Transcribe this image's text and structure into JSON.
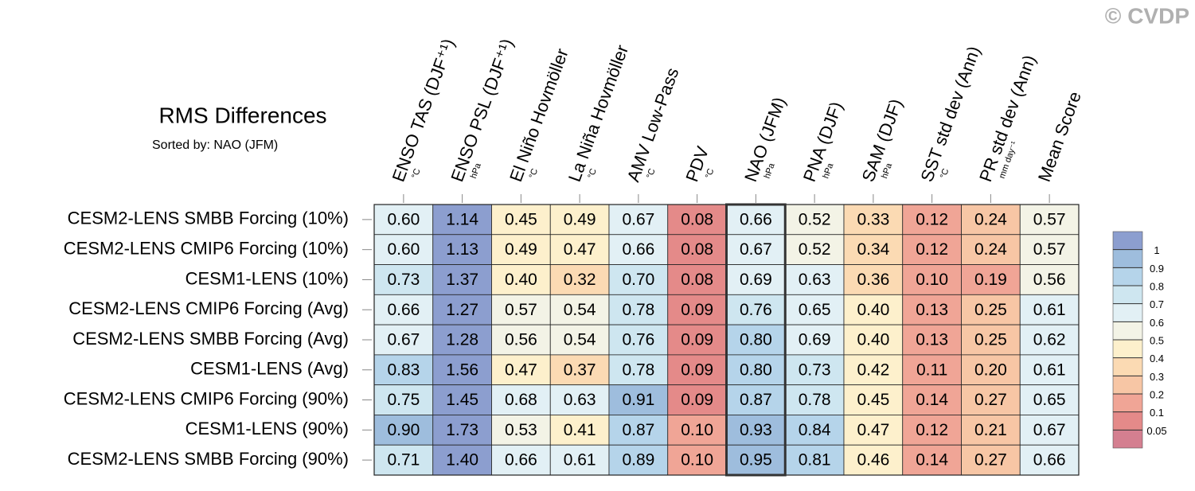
{
  "chart_data": {
    "type": "heatmap",
    "title": "RMS Differences",
    "subtitle": "Sorted by: NAO (JFM)",
    "credit": "© CVDP",
    "columns": [
      {
        "label": "ENSO TAS (DJF⁺¹)",
        "unit": "°C"
      },
      {
        "label": "ENSO PSL (DJF⁺¹)",
        "unit": "hPa"
      },
      {
        "label": "El Niño Hovmöller",
        "unit": "°C"
      },
      {
        "label": "La Niña Hovmöller",
        "unit": "°C"
      },
      {
        "label": "AMV Low-Pass",
        "unit": "°C"
      },
      {
        "label": "PDV",
        "unit": "°C"
      },
      {
        "label": "NAO (JFM)",
        "unit": "hPa"
      },
      {
        "label": "PNA (DJF)",
        "unit": "hPa"
      },
      {
        "label": "SAM (DJF)",
        "unit": "hPa"
      },
      {
        "label": "SST std dev (Ann)",
        "unit": "°C"
      },
      {
        "label": "PR std dev (Ann)",
        "unit": "mm day⁻¹"
      },
      {
        "label": "Mean Score"
      }
    ],
    "rows": [
      "CESM2-LENS SMBB Forcing (10%)",
      "CESM2-LENS CMIP6 Forcing (10%)",
      "CESM1-LENS (10%)",
      "CESM2-LENS CMIP6 Forcing (Avg)",
      "CESM2-LENS SMBB Forcing (Avg)",
      "CESM1-LENS (Avg)",
      "CESM2-LENS CMIP6 Forcing (90%)",
      "CESM1-LENS (90%)",
      "CESM2-LENS SMBB Forcing (90%)"
    ],
    "values": [
      [
        0.6,
        1.14,
        0.45,
        0.49,
        0.67,
        0.08,
        0.66,
        0.52,
        0.33,
        0.12,
        0.24,
        0.57
      ],
      [
        0.6,
        1.13,
        0.49,
        0.47,
        0.66,
        0.08,
        0.67,
        0.52,
        0.34,
        0.12,
        0.24,
        0.57
      ],
      [
        0.73,
        1.37,
        0.4,
        0.32,
        0.7,
        0.08,
        0.69,
        0.63,
        0.36,
        0.1,
        0.19,
        0.56
      ],
      [
        0.66,
        1.27,
        0.57,
        0.54,
        0.78,
        0.09,
        0.76,
        0.65,
        0.4,
        0.13,
        0.25,
        0.61
      ],
      [
        0.67,
        1.28,
        0.56,
        0.54,
        0.76,
        0.09,
        0.8,
        0.69,
        0.4,
        0.13,
        0.25,
        0.62
      ],
      [
        0.83,
        1.56,
        0.47,
        0.37,
        0.78,
        0.09,
        0.8,
        0.73,
        0.42,
        0.11,
        0.2,
        0.61
      ],
      [
        0.75,
        1.45,
        0.68,
        0.63,
        0.91,
        0.09,
        0.87,
        0.78,
        0.45,
        0.14,
        0.27,
        0.65
      ],
      [
        0.9,
        1.73,
        0.53,
        0.41,
        0.87,
        0.1,
        0.93,
        0.84,
        0.47,
        0.12,
        0.21,
        0.67
      ],
      [
        0.71,
        1.4,
        0.66,
        0.61,
        0.89,
        0.1,
        0.95,
        0.81,
        0.46,
        0.14,
        0.27,
        0.66
      ]
    ],
    "value_labels": [
      [
        "0.60",
        "1.14",
        "0.45",
        "0.49",
        "0.67",
        "0.08",
        "0.66",
        "0.52",
        "0.33",
        "0.12",
        "0.24",
        "0.57"
      ],
      [
        "0.60",
        "1.13",
        "0.49",
        "0.47",
        "0.66",
        "0.08",
        "0.67",
        "0.52",
        "0.34",
        "0.12",
        "0.24",
        "0.57"
      ],
      [
        "0.73",
        "1.37",
        "0.40",
        "0.32",
        "0.70",
        "0.08",
        "0.69",
        "0.63",
        "0.36",
        "0.10",
        "0.19",
        "0.56"
      ],
      [
        "0.66",
        "1.27",
        "0.57",
        "0.54",
        "0.78",
        "0.09",
        "0.76",
        "0.65",
        "0.40",
        "0.13",
        "0.25",
        "0.61"
      ],
      [
        "0.67",
        "1.28",
        "0.56",
        "0.54",
        "0.76",
        "0.09",
        "0.80",
        "0.69",
        "0.40",
        "0.13",
        "0.25",
        "0.62"
      ],
      [
        "0.83",
        "1.56",
        "0.47",
        "0.37",
        "0.78",
        "0.09",
        "0.80",
        "0.73",
        "0.42",
        "0.11",
        "0.20",
        "0.61"
      ],
      [
        "0.75",
        "1.45",
        "0.68",
        "0.63",
        "0.91",
        "0.09",
        "0.87",
        "0.78",
        "0.45",
        "0.14",
        "0.27",
        "0.65"
      ],
      [
        "0.90",
        "1.73",
        "0.53",
        "0.41",
        "0.87",
        "0.10",
        "0.93",
        "0.84",
        "0.47",
        "0.12",
        "0.21",
        "0.67"
      ],
      [
        "0.71",
        "1.40",
        "0.66",
        "0.61",
        "0.89",
        "0.10",
        "0.95",
        "0.81",
        "0.46",
        "0.14",
        "0.27",
        "0.66"
      ]
    ],
    "highlight_column": 6,
    "colorbar_levels": [
      0.05,
      0.1,
      0.2,
      0.3,
      0.4,
      0.5,
      0.6,
      0.7,
      0.8,
      0.9,
      1
    ],
    "colorbar_colors": [
      "#d47f90",
      "#e48a89",
      "#f0a596",
      "#f7c6a5",
      "#fbdab3",
      "#fdf0cc",
      "#f3f3e6",
      "#e2f0f5",
      "#cee6f0",
      "#b5d4ea",
      "#9ebddd",
      "#8c9ecf"
    ]
  }
}
